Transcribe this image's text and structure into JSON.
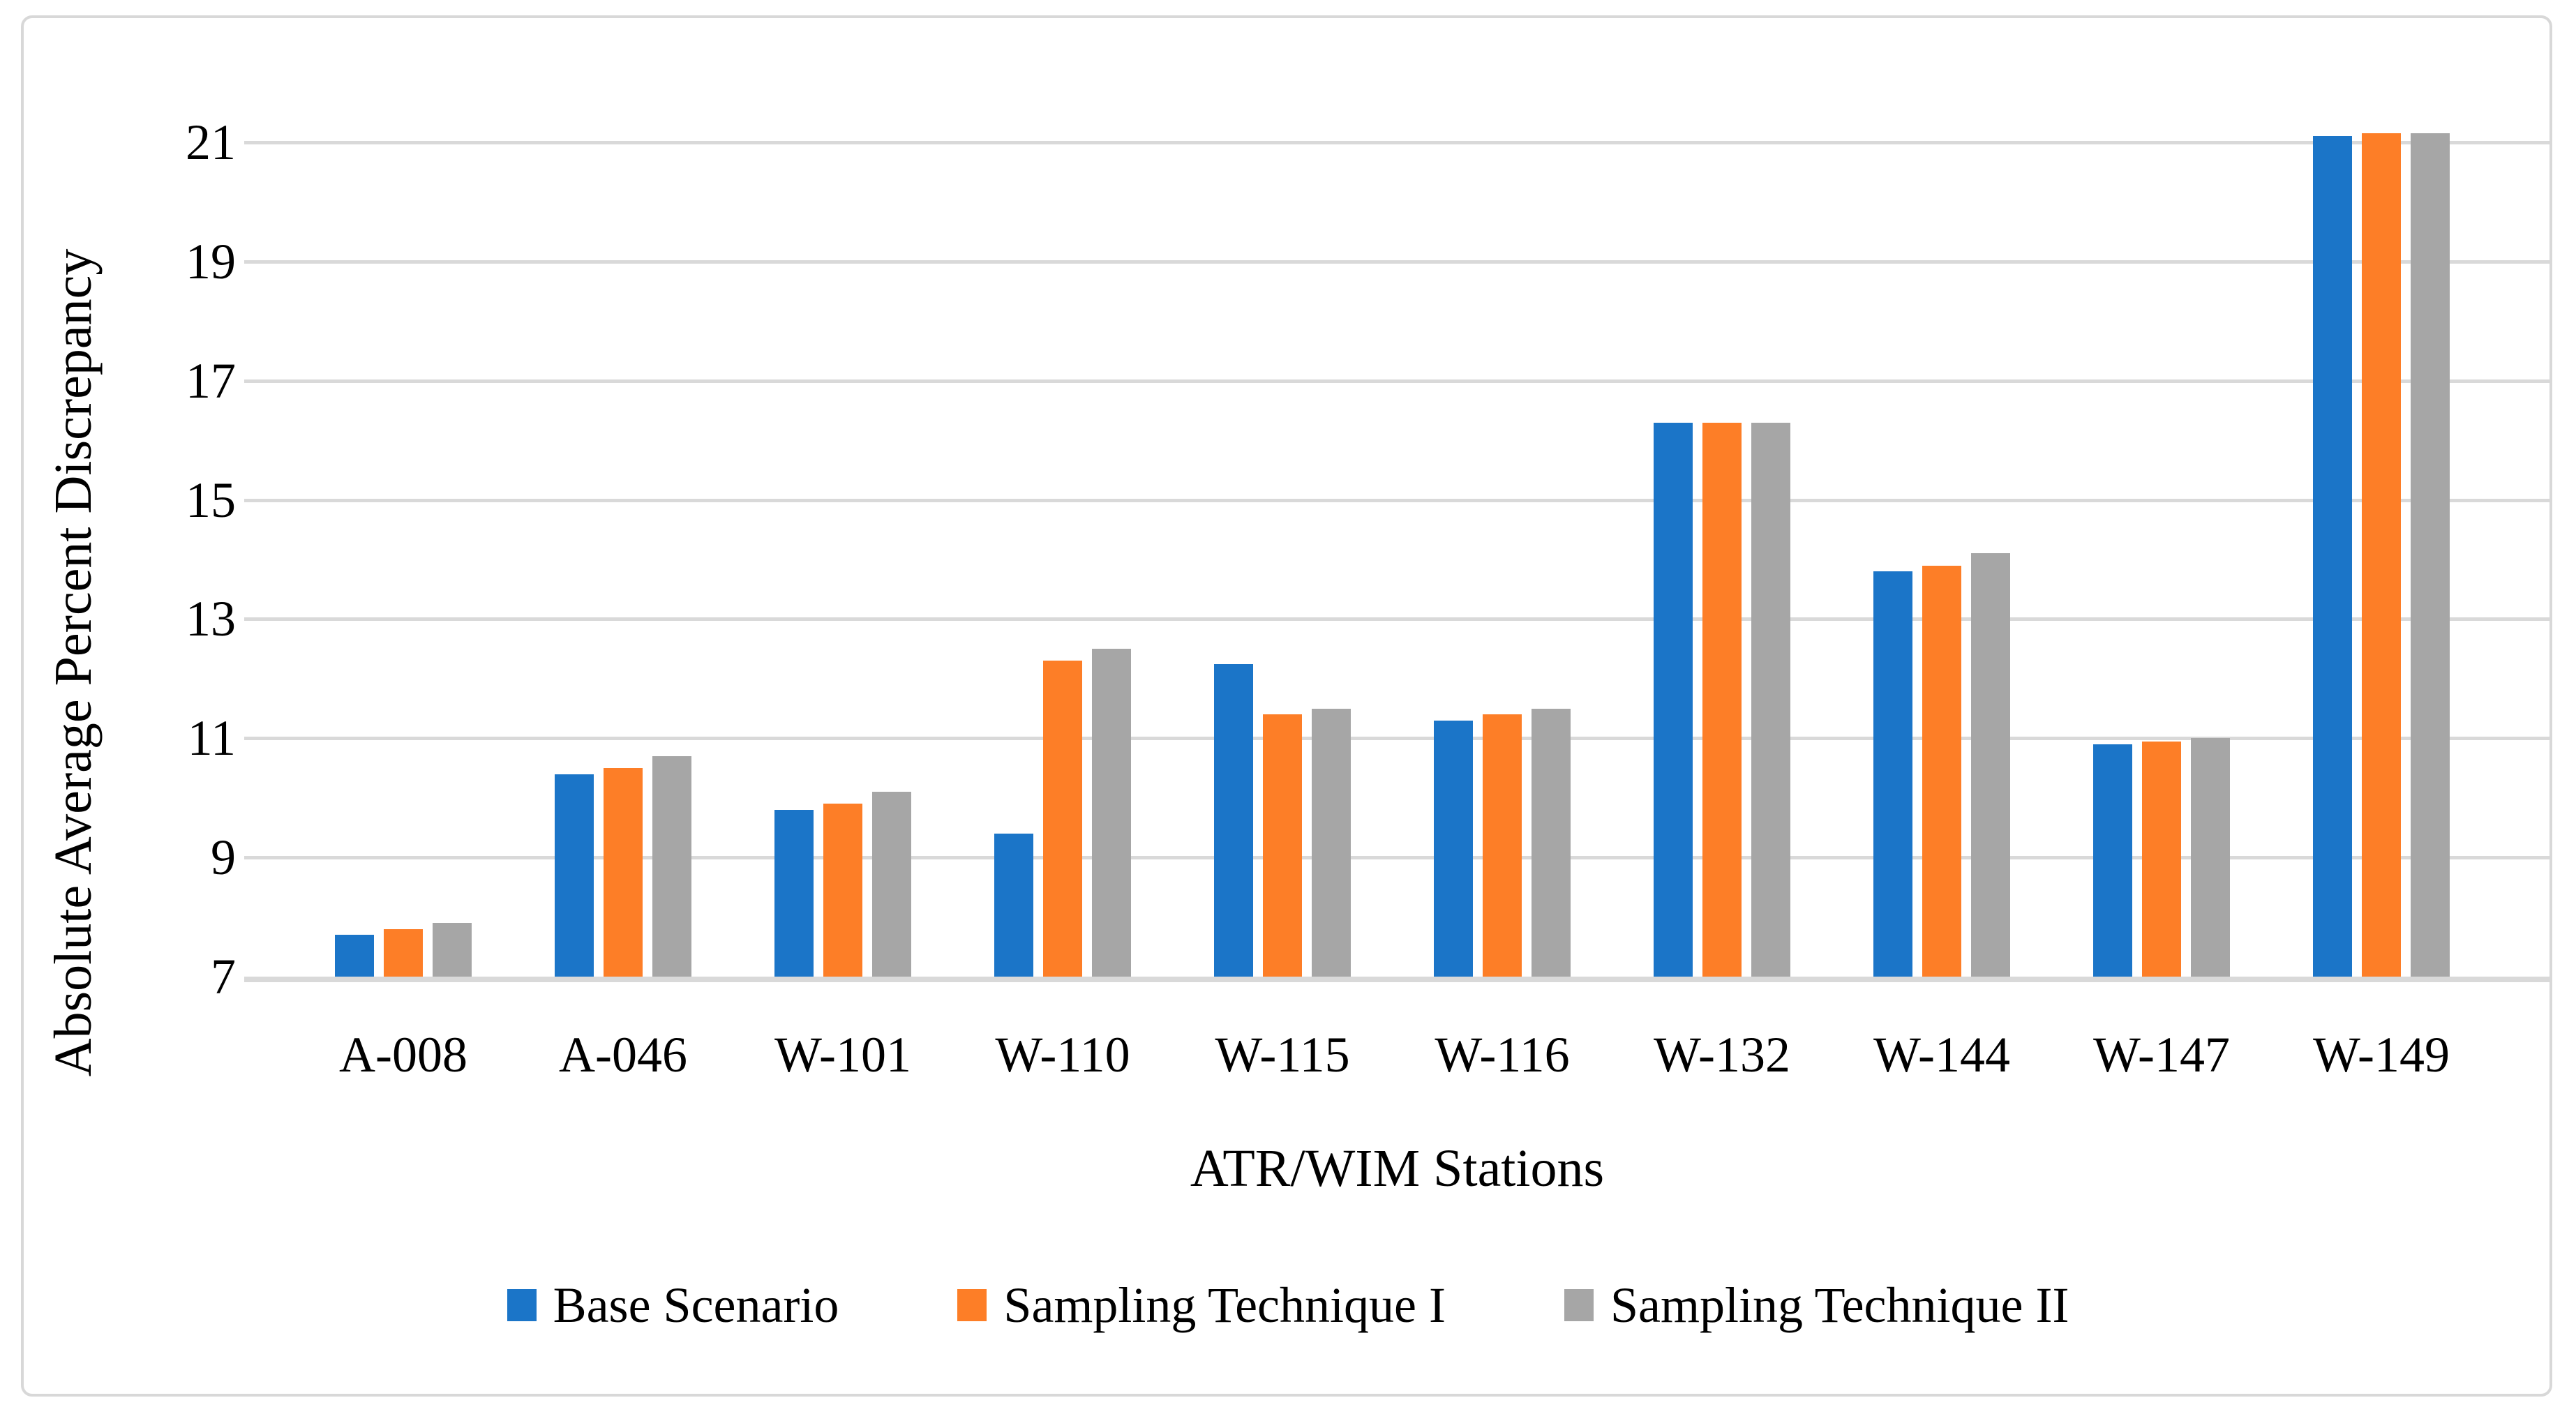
{
  "chart_data": {
    "type": "bar",
    "title": "",
    "categories": [
      "A-008",
      "A-046",
      "W-101",
      "W-110",
      "W-115",
      "W-116",
      "W-132",
      "W-144",
      "W-147",
      "W-149"
    ],
    "series": [
      {
        "name": "Base Scenario",
        "color": "#1b75c8",
        "values": [
          7.7,
          10.4,
          9.8,
          9.4,
          12.25,
          11.3,
          16.3,
          13.8,
          10.9,
          21.1
        ]
      },
      {
        "name": "Sampling Technique I",
        "color": "#fd7e27",
        "values": [
          7.8,
          10.5,
          9.9,
          12.3,
          11.4,
          11.4,
          16.3,
          13.9,
          10.95,
          21.15
        ]
      },
      {
        "name": "Sampling Technique II",
        "color": "#a6a6a6",
        "values": [
          7.9,
          10.7,
          10.1,
          12.5,
          11.5,
          11.5,
          16.3,
          14.1,
          11.0,
          21.15
        ]
      }
    ],
    "xlabel": "ATR/WIM Stations",
    "ylabel": "Absolute Average Percent Discrepancy",
    "ylim": [
      7,
      21
    ],
    "yticks": [
      7,
      9,
      11,
      13,
      15,
      17,
      19,
      21
    ],
    "grid": true,
    "gridline_color": "#d9d9d9",
    "legend_position": "bottom"
  }
}
